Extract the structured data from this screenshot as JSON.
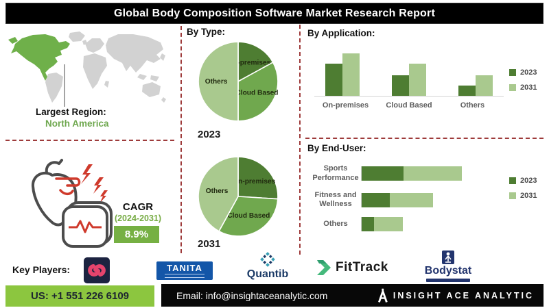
{
  "title": "Global Body Composition Software Market Research Report",
  "map": {
    "caption": "Largest Region:",
    "region": "North America"
  },
  "cagr": {
    "label": "CAGR",
    "period": "(2024-2031)",
    "value": "8.9%"
  },
  "sections": {
    "by_type": "By Type:",
    "by_application": "By Application:",
    "by_end_user": "By End-User:"
  },
  "chart_data": [
    {
      "id": "typePie2023",
      "type": "pie",
      "section": "By Type",
      "title": "2023",
      "categories": [
        "On-premises",
        "Cloud Based",
        "Others"
      ],
      "values": [
        17,
        33,
        50
      ],
      "unit": "percent-estimated",
      "colors": [
        "#4e7d32",
        "#70a84e",
        "#a9c98e"
      ],
      "start_angle_deg": -90
    },
    {
      "id": "typePie2031",
      "type": "pie",
      "section": "By Type",
      "title": "2031",
      "categories": [
        "On-premises",
        "Cloud Based",
        "Others"
      ],
      "values": [
        26,
        32,
        42
      ],
      "unit": "percent-estimated",
      "colors": [
        "#4e7d32",
        "#70a84e",
        "#a9c98e"
      ],
      "start_angle_deg": -90
    },
    {
      "id": "appBars",
      "type": "bar",
      "section": "By Application",
      "categories": [
        "On-premises",
        "Cloud Based",
        "Others"
      ],
      "series": [
        {
          "name": "2023",
          "color": "#4e7d32",
          "values": [
            67,
            43,
            21
          ]
        },
        {
          "name": "2031",
          "color": "#a9c98e",
          "values": [
            89,
            67,
            43
          ]
        }
      ],
      "ylim": [
        0,
        100
      ],
      "unit": "index-estimated",
      "legend_position": "right",
      "grid": false
    },
    {
      "id": "endUserBars",
      "type": "hbar-stacked",
      "section": "By End-User",
      "categories": [
        "Sports Performance",
        "Fitness and Wellness",
        "Others"
      ],
      "series": [
        {
          "name": "2023",
          "color": "#4e7d32",
          "values": [
            42,
            28,
            12
          ]
        },
        {
          "name": "2031",
          "color": "#a9c98e",
          "values": [
            58,
            43,
            29
          ]
        }
      ],
      "xlim": [
        0,
        100
      ],
      "unit": "index-estimated",
      "legend_position": "right"
    }
  ],
  "key_players": {
    "label": "Key Players:",
    "players": [
      {
        "name": "",
        "logo": "pink-swirl-on-navy-square"
      },
      {
        "name": "TANITA"
      },
      {
        "name": "Quantib"
      },
      {
        "name": "FitTrack"
      },
      {
        "name": "Bodystat"
      }
    ]
  },
  "footer": {
    "phone": "US: +1 551 226 6109",
    "email": "Email: info@insightaceanalytic.com",
    "brand": "INSIGHT ACE ANALYTIC"
  },
  "colors": {
    "series_2023": "#4e7d32",
    "series_2031": "#a9c98e",
    "cloud_slice": "#70a84e",
    "region_highlight": "#6fb04a",
    "map_land": "#d2d2d2",
    "divider_dashed": "#9e3b3b",
    "cagr_green": "#76b043",
    "phone_bg": "#8cc63f",
    "banner_bg": "#000000"
  }
}
